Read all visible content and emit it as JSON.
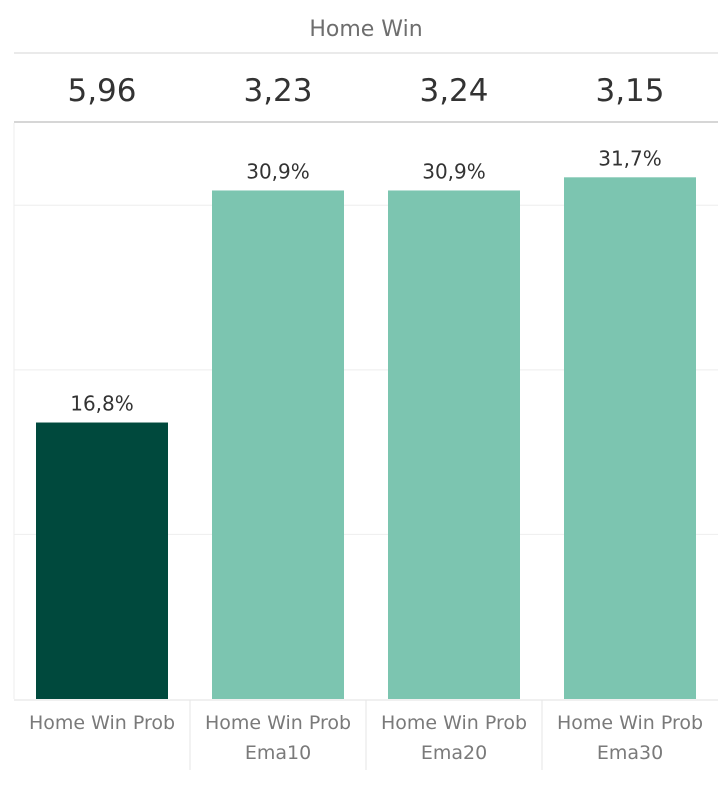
{
  "header": {
    "title": "Home Win",
    "odds": [
      "5,96",
      "3,23",
      "3,24",
      "3,15"
    ]
  },
  "colors": {
    "highlight": "#00493d",
    "bar": "#7cc5b0",
    "grid": "#eeeeee",
    "divider": "#d6d6d6"
  },
  "chart_data": {
    "type": "bar",
    "title": "Home Win",
    "categories": [
      [
        "Home Win Prob"
      ],
      [
        "Home Win Prob",
        "Ema10"
      ],
      [
        "Home Win Prob",
        "Ema20"
      ],
      [
        "Home Win Prob",
        "Ema30"
      ]
    ],
    "values": [
      16.8,
      30.9,
      30.9,
      31.7
    ],
    "value_labels": [
      "16,8%",
      "30,9%",
      "30,9%",
      "31,7%"
    ],
    "ylim": [
      0,
      35
    ],
    "grid": true,
    "highlight_index": 0
  }
}
